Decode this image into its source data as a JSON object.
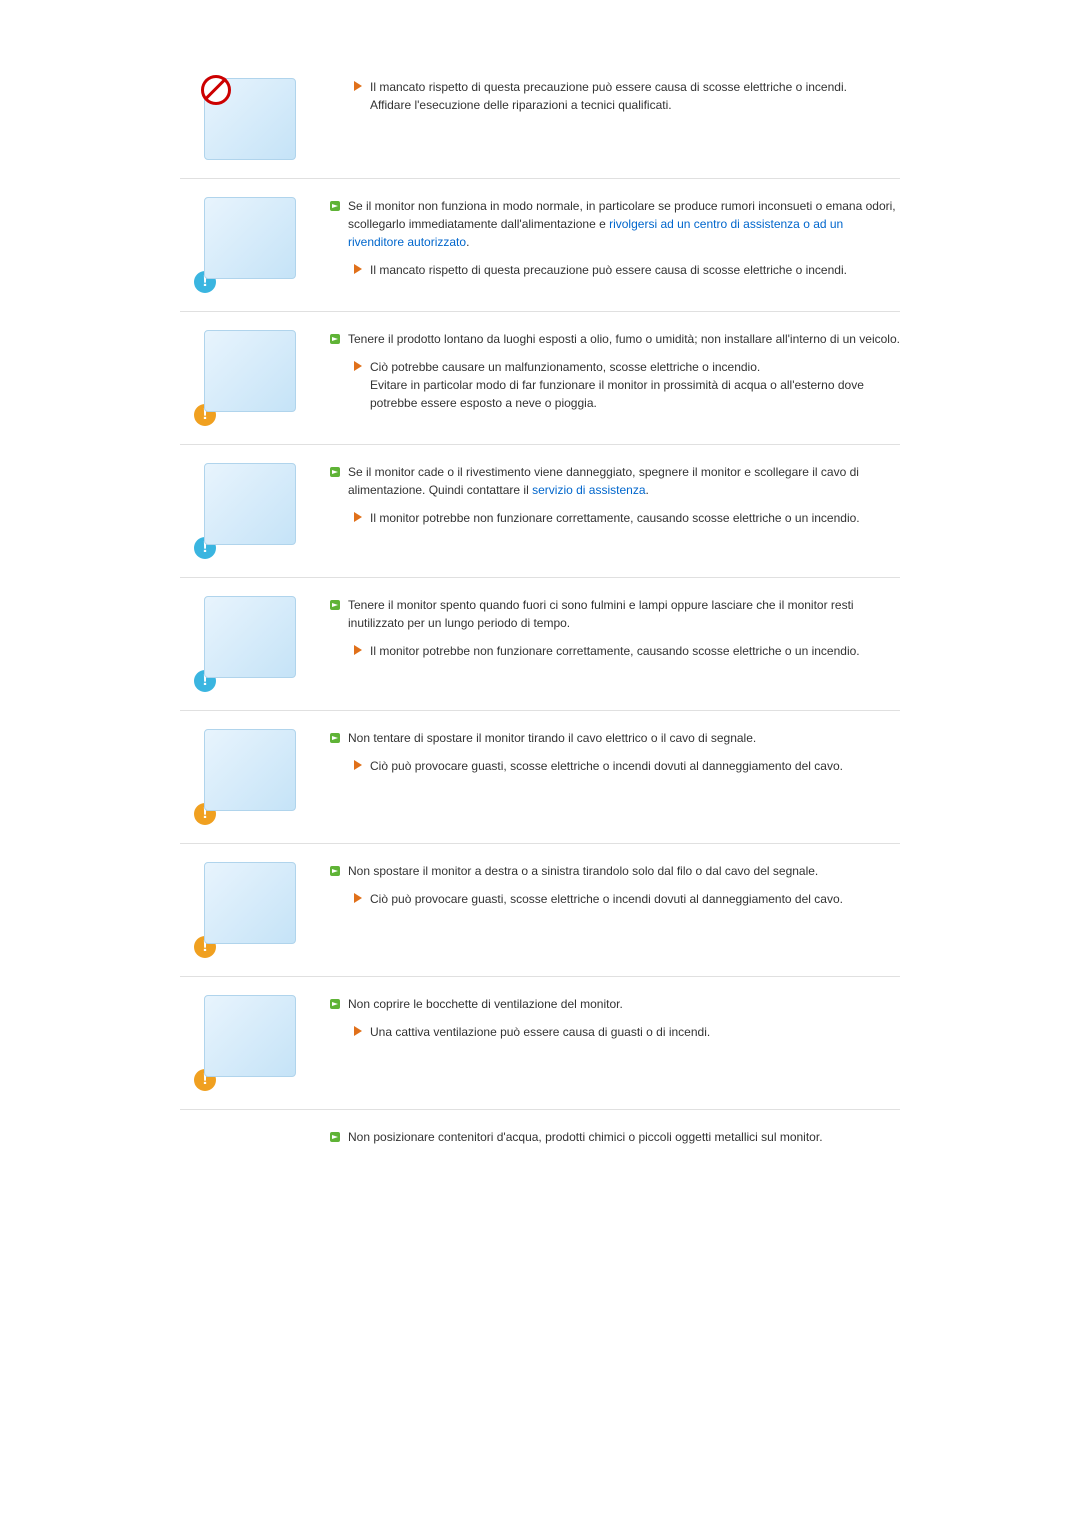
{
  "colors": {
    "text": "#333333",
    "link": "#0066cc",
    "border": "#e0e0e0",
    "green_bullet": "#5fb336",
    "orange_arrow": "#e0701a",
    "caution_blue": "#3ab5e0",
    "warn_orange": "#f0a020",
    "prohibit_red": "#c00"
  },
  "typography": {
    "font_family": "Arial, Helvetica, sans-serif",
    "font_size_pt": 9,
    "line_height": 1.5
  },
  "sections": [
    {
      "image_alt": "monitor repair illustration",
      "icon": "prohibit",
      "sub": {
        "text1": "Il mancato rispetto di questa precauzione può essere causa di scosse elettriche o incendi.",
        "text2": "Affidare l'esecuzione delle riparazioni a tecnici qualificati."
      }
    },
    {
      "image_alt": "monitor odor / unplug illustration",
      "icon": "caution",
      "main": {
        "pre": "Se il monitor non funziona in modo normale, in particolare se produce rumori inconsueti o emana odori, scollegarlo immediatamente dall'alimentazione e ",
        "link": "rivolgersi ad un centro di assistenza o ad un rivenditore autorizzato",
        "post": "."
      },
      "sub": {
        "text1": "Il mancato rispetto di questa precauzione può essere causa di scosse elettriche o incendi."
      }
    },
    {
      "image_alt": "oil smoke humidity illustration",
      "icon": "warn",
      "main": {
        "pre": "Tenere il prodotto lontano da luoghi esposti a olio, fumo o umidità; non installare all'interno di un veicolo."
      },
      "sub": {
        "text1": "Ciò potrebbe causare un malfunzionamento, scosse elettriche o incendio.",
        "text2": "Evitare in particolar modo di far funzionare il monitor in prossimità di acqua o all'esterno dove potrebbe essere esposto a neve o pioggia."
      }
    },
    {
      "image_alt": "monitor fall / damage illustration",
      "icon": "caution",
      "main": {
        "pre": "Se il monitor cade o il rivestimento viene danneggiato, spegnere il monitor e scollegare il cavo di alimentazione. Quindi contattare il ",
        "link": "servizio di assistenza",
        "post": "."
      },
      "sub": {
        "text1": "Il monitor potrebbe non funzionare correttamente, causando scosse elettriche o un incendio."
      }
    },
    {
      "image_alt": "lightning / storm illustration",
      "icon": "caution",
      "main": {
        "pre": "Tenere il monitor spento quando fuori ci sono fulmini e lampi oppure lasciare che il monitor resti inutilizzato per un lungo periodo di tempo."
      },
      "sub": {
        "text1": "Il monitor potrebbe non funzionare correttamente, causando scosse elettriche o un incendio."
      }
    },
    {
      "image_alt": "pull by cable illustration",
      "icon": "warn",
      "main": {
        "pre": "Non tentare di spostare il monitor tirando il cavo elettrico o il cavo di segnale."
      },
      "sub": {
        "text1": "Ciò può provocare guasti, scosse elettriche o incendi dovuti al danneggiamento del cavo."
      }
    },
    {
      "image_alt": "swing by cable illustration",
      "icon": "warn",
      "main": {
        "pre": "Non spostare il monitor a destra o a sinistra tirandolo solo dal filo o dal cavo del segnale."
      },
      "sub": {
        "text1": "Ciò può provocare guasti, scosse elettriche o incendi dovuti al danneggiamento del cavo."
      }
    },
    {
      "image_alt": "ventilation blocked illustration",
      "icon": "warn",
      "main": {
        "pre": "Non coprire le bocchette di ventilazione del monitor."
      },
      "sub": {
        "text1": "Una cattiva ventilazione può essere causa di guasti o di incendi."
      }
    },
    {
      "image_alt": "water container on monitor illustration",
      "icon": "none",
      "main": {
        "pre": "Non posizionare contenitori d'acqua, prodotti chimici o piccoli oggetti metallici sul monitor."
      },
      "no_border": true
    }
  ]
}
